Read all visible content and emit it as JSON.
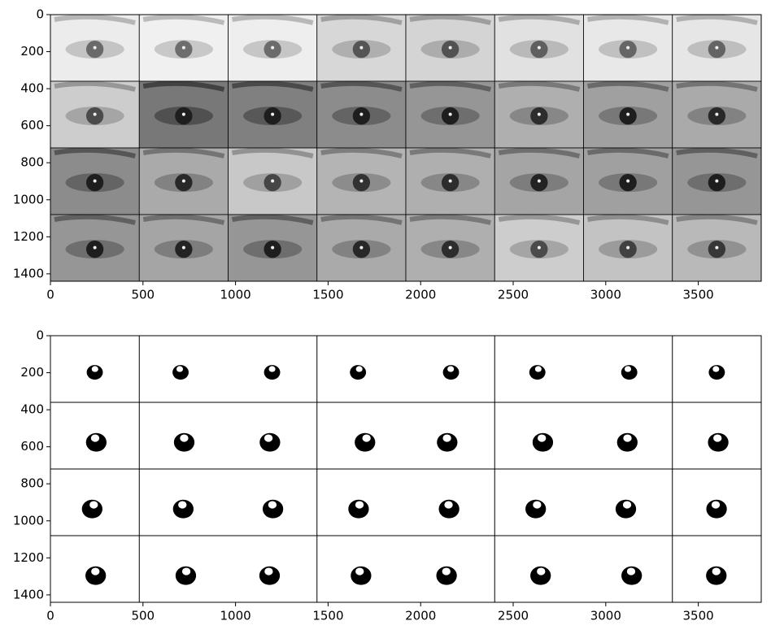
{
  "chart_data": [
    {
      "type": "image",
      "xlim": [
        0,
        3840
      ],
      "ylim": [
        1440,
        0
      ],
      "xticks": [
        0,
        500,
        1000,
        1500,
        2000,
        2500,
        3000,
        3500
      ],
      "yticks": [
        0,
        200,
        400,
        600,
        800,
        1000,
        1200,
        1400
      ]
    },
    {
      "type": "mask",
      "xlim": [
        0,
        3840
      ],
      "ylim": [
        1440,
        0
      ],
      "xticks": [
        0,
        500,
        1000,
        1500,
        2000,
        2500,
        3000,
        3500
      ],
      "yticks": [
        0,
        200,
        400,
        600,
        800,
        1000,
        1200,
        1400
      ]
    }
  ]
}
